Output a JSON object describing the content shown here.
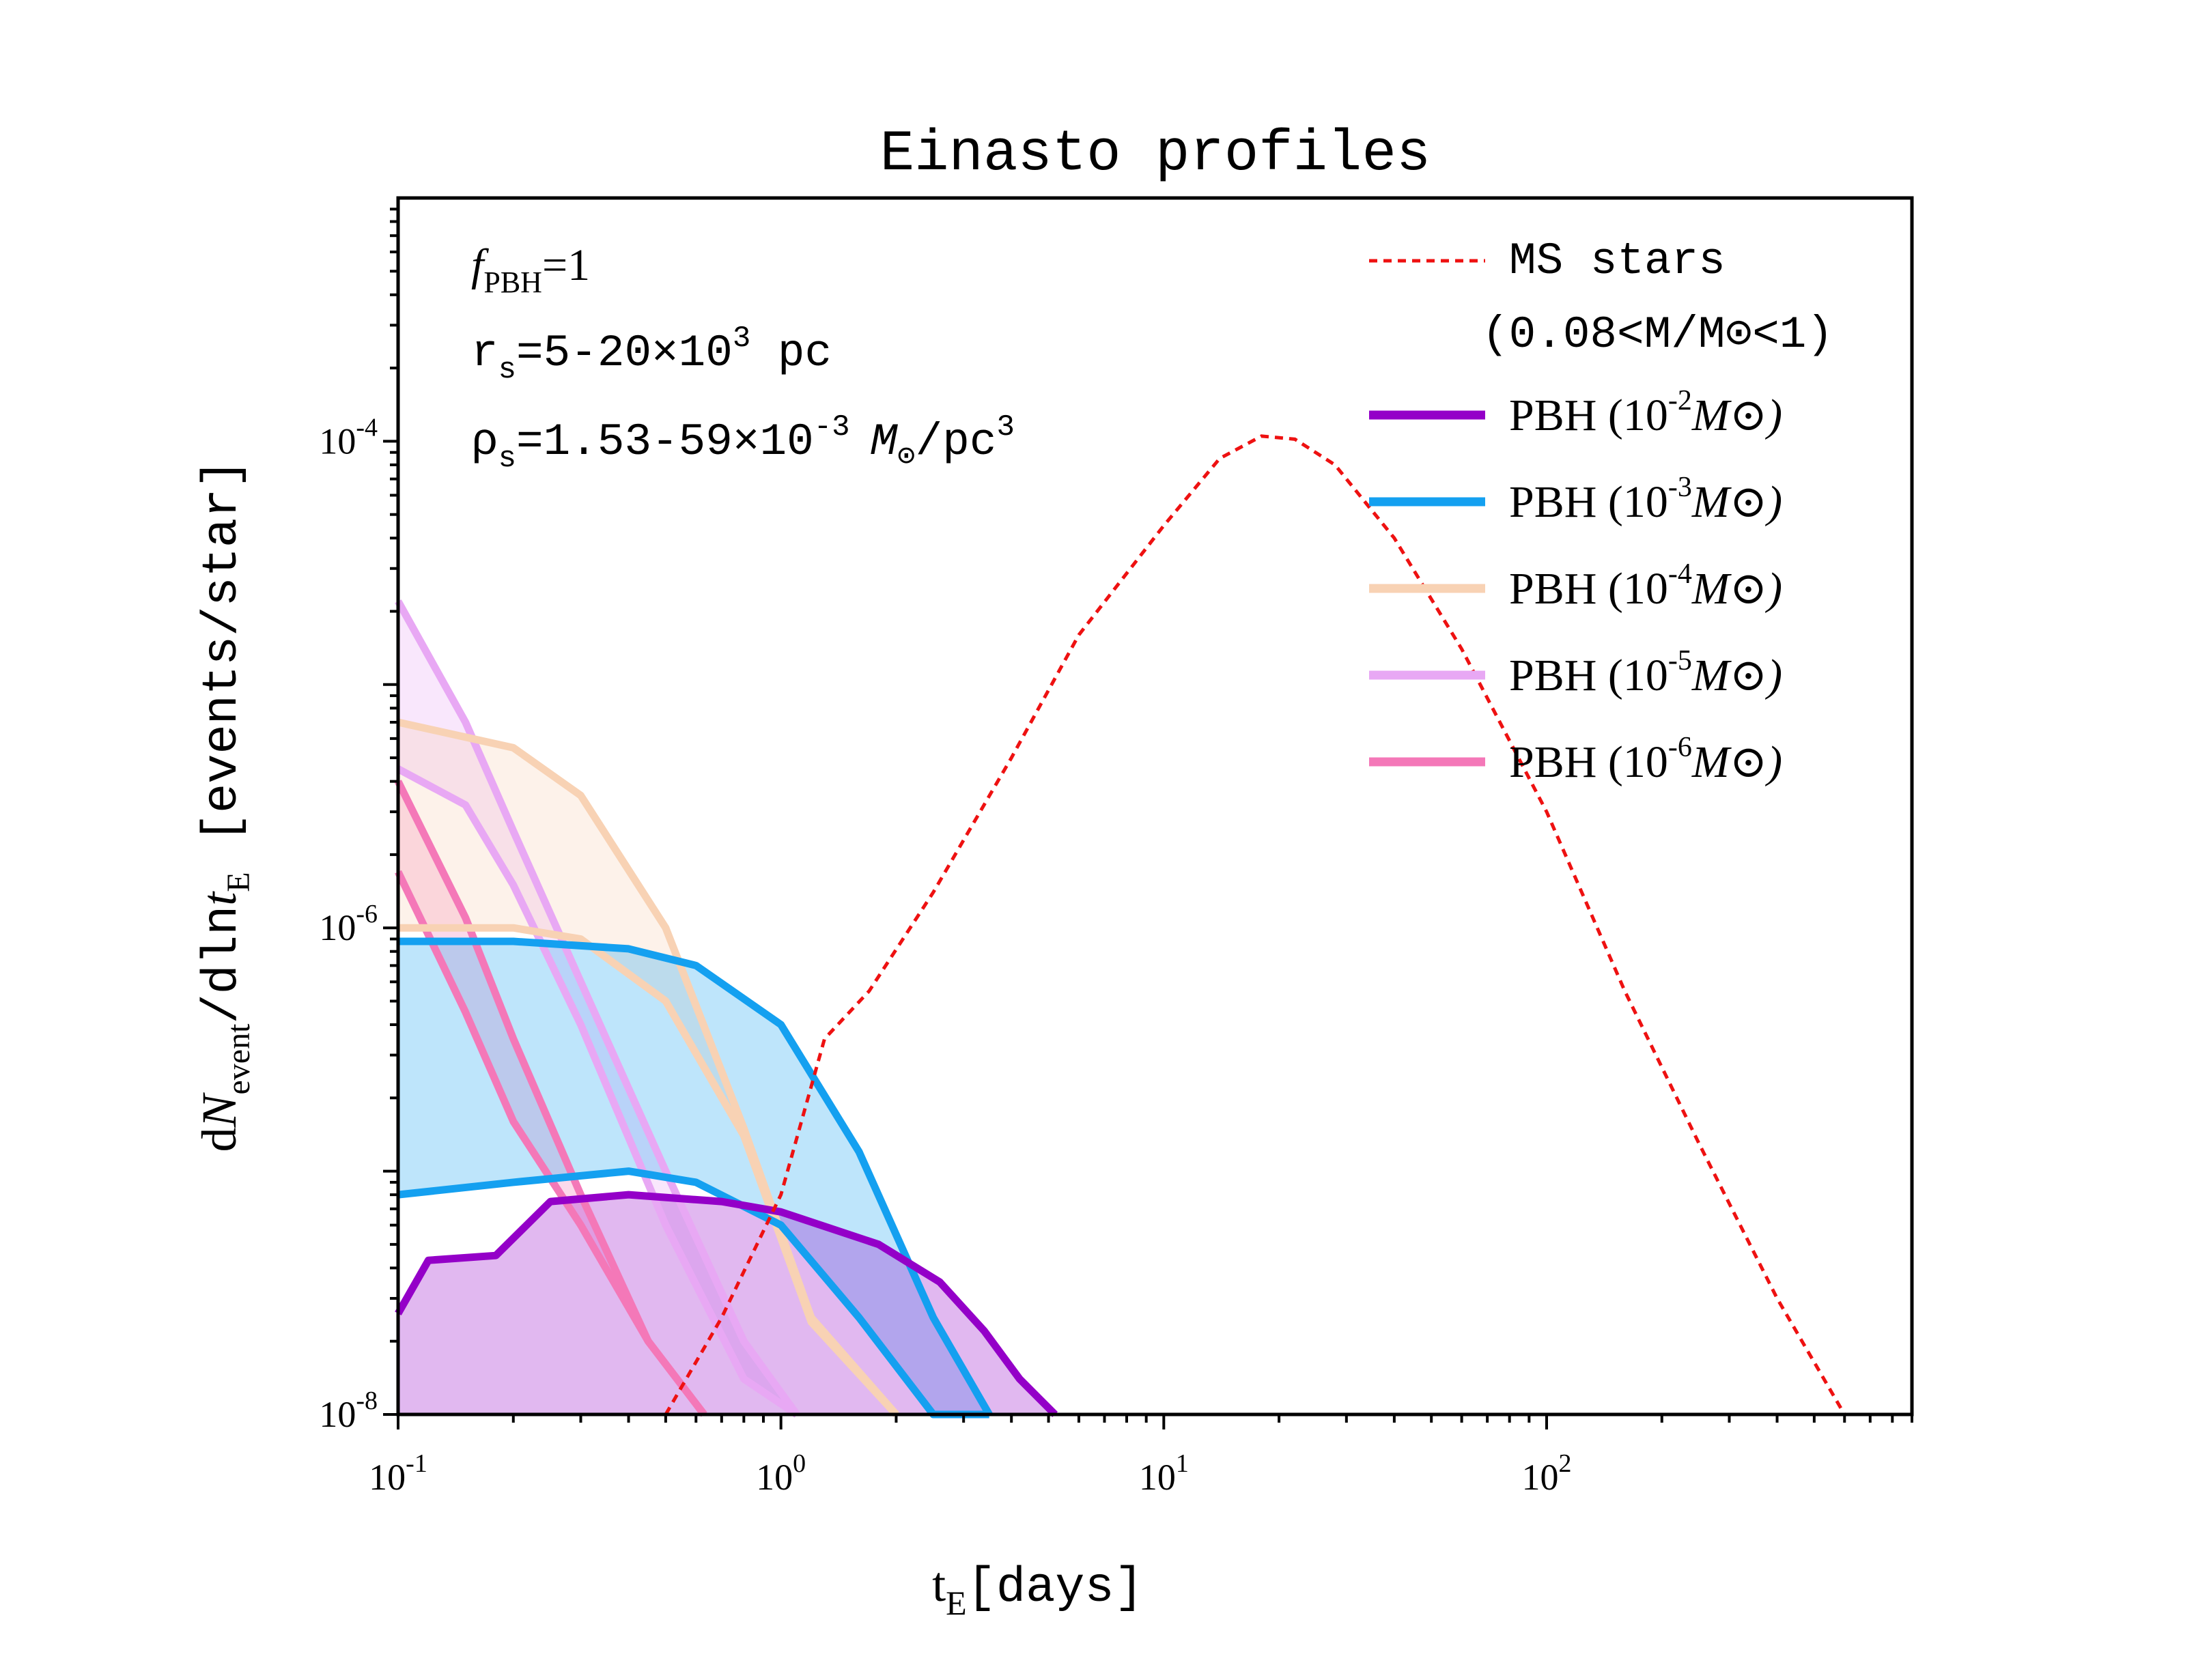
{
  "chart_data": {
    "type": "area",
    "title": "Einasto profiles",
    "xlabel": {
      "base": "t",
      "sub": "E",
      "rest": "[days]"
    },
    "ylabel": {
      "prefix": "d",
      "italicN": "N",
      "sub1": "event",
      "mid": "/dln",
      "italict": "t",
      "sub2": "E",
      "rest": " [events/star]"
    },
    "x_scale": "log",
    "y_scale": "log",
    "xlim": [
      0.1,
      900
    ],
    "ylim": [
      1e-08,
      0.001
    ],
    "x_ticks": [
      {
        "value": 0.1,
        "base": "10",
        "exp": "-1"
      },
      {
        "value": 1,
        "base": "10",
        "exp": "0"
      },
      {
        "value": 10,
        "base": "10",
        "exp": "1"
      },
      {
        "value": 100,
        "base": "10",
        "exp": "2"
      }
    ],
    "y_ticks": [
      {
        "value": 1e-08,
        "base": "10",
        "exp": "-8"
      },
      {
        "value": 1e-06,
        "base": "10",
        "exp": "-6"
      },
      {
        "value": 0.0001,
        "base": "10",
        "exp": "-4"
      }
    ],
    "grid": false,
    "legend_position": "top-right",
    "annotations": {
      "fpbh": {
        "italic": "f",
        "sub": "PBH",
        "rest": "=1"
      },
      "rs": {
        "base": "r",
        "sub": "s",
        "mid": "=5-20×10",
        "sup": "3",
        "rest": " pc"
      },
      "rhos": {
        "base": "ρ",
        "sub": "s",
        "mid": "=1.53-59×10",
        "sup": "-3",
        "unit": "M",
        "unitsub": "⊙",
        "rest": "/pc",
        "sup2": "3"
      }
    },
    "legend": [
      {
        "key": "ms",
        "label": "MS stars",
        "label2": "(0.08<M/M⊙<1)",
        "color": "#ee1111",
        "style": "dotted"
      },
      {
        "key": "m2",
        "label": "PBH (10",
        "exp": "-2",
        "unit": "M⊙)",
        "color": "#9400c8",
        "style": "solid"
      },
      {
        "key": "m3",
        "label": "PBH (10",
        "exp": "-3",
        "unit": "M⊙)",
        "color": "#14a0f0",
        "style": "solid"
      },
      {
        "key": "m4",
        "label": "PBH (10",
        "exp": "-4",
        "unit": "M⊙)",
        "color": "#f8d2b4",
        "style": "solid"
      },
      {
        "key": "m5",
        "label": "PBH (10",
        "exp": "-5",
        "unit": "M⊙)",
        "color": "#e8a8f4",
        "style": "solid"
      },
      {
        "key": "m6",
        "label": "PBH (10",
        "exp": "-6",
        "unit": "M⊙)",
        "color": "#f478b8",
        "style": "solid"
      }
    ],
    "series": [
      {
        "key": "m6",
        "color": "#f478b8",
        "upper": {
          "x": [
            0.1,
            0.2,
            0.3,
            0.4,
            0.5,
            0.6
          ],
          "y": [
            1.7e-06,
            1.2e-07,
            2.9e-08,
            1.3e-08,
            1e-08,
            1e-08
          ]
        },
        "lower": {
          "x": [
            0.1,
            0.2,
            0.3,
            0.4,
            0.5
          ],
          "y": [
            1e-06,
            1e-07,
            2e-08,
            1e-08,
            1e-08
          ]
        },
        "x": [
          0.1,
          0.15,
          0.2,
          0.3,
          0.45,
          0.63
        ],
        "y": [
          1.7e-06,
          4.5e-07,
          1.6e-07,
          6e-08,
          2e-08,
          1e-08
        ],
        "y_lower": [
          4e-06,
          1.1e-06,
          3.5e-07,
          8e-08,
          2e-08,
          1e-08
        ]
      },
      {
        "key": "m5",
        "color": "#e8a8f4",
        "x": [
          0.1,
          0.15,
          0.2,
          0.3,
          0.5,
          0.8,
          1.1
        ],
        "y": [
          2.2e-05,
          7e-06,
          2.5e-06,
          6e-07,
          1e-07,
          2e-08,
          1e-08
        ],
        "y_lower": [
          4.5e-06,
          3.2e-06,
          1.5e-06,
          4e-07,
          6e-08,
          1.4e-08,
          1e-08
        ]
      },
      {
        "key": "m4",
        "color": "#f8d2b4",
        "x": [
          0.1,
          0.2,
          0.3,
          0.5,
          0.8,
          1.2,
          2.0
        ],
        "y": [
          7e-06,
          5.5e-06,
          3.5e-06,
          1e-06,
          1.5e-07,
          2.5e-08,
          1e-08
        ],
        "y_lower": [
          1e-06,
          1e-06,
          9e-07,
          5e-07,
          1.4e-07,
          2.4e-08,
          1e-08
        ]
      },
      {
        "key": "m3",
        "color": "#14a0f0",
        "x": [
          0.1,
          0.2,
          0.4,
          0.6,
          1.0,
          1.6,
          2.5,
          3.5
        ],
        "y": [
          8.8e-07,
          8.8e-07,
          8.2e-07,
          7e-07,
          4e-07,
          1.2e-07,
          2.5e-08,
          1e-08
        ],
        "y_lower": [
          8e-08,
          9e-08,
          1e-07,
          9e-08,
          6e-08,
          2.5e-08,
          1e-08,
          1e-08
        ]
      },
      {
        "key": "m2",
        "color": "#9400c8",
        "x": [
          0.1,
          0.12,
          0.18,
          0.25,
          0.4,
          0.7,
          1.0,
          1.8,
          2.6,
          3.4,
          4.2,
          5.2
        ],
        "y": [
          2.6e-08,
          4.3e-08,
          4.5e-08,
          7.5e-08,
          8e-08,
          7.5e-08,
          6.8e-08,
          5e-08,
          3.5e-08,
          2.2e-08,
          1.4e-08,
          1e-08
        ]
      },
      {
        "key": "ms",
        "color": "#ee1111",
        "x": [
          0.5,
          0.7,
          1.0,
          1.3,
          1.7,
          2.5,
          4,
          6,
          10,
          14,
          18,
          22,
          28,
          40,
          60,
          100,
          160,
          250,
          400,
          600
        ],
        "y": [
          1e-08,
          2.5e-08,
          8e-08,
          3.5e-07,
          5.5e-07,
          1.4e-06,
          5e-06,
          1.6e-05,
          4.5e-05,
          8.5e-05,
          0.000105,
          0.000102,
          8e-05,
          4e-05,
          1.4e-05,
          3e-06,
          5.5e-07,
          1.3e-07,
          3e-08,
          1e-08
        ]
      }
    ]
  }
}
